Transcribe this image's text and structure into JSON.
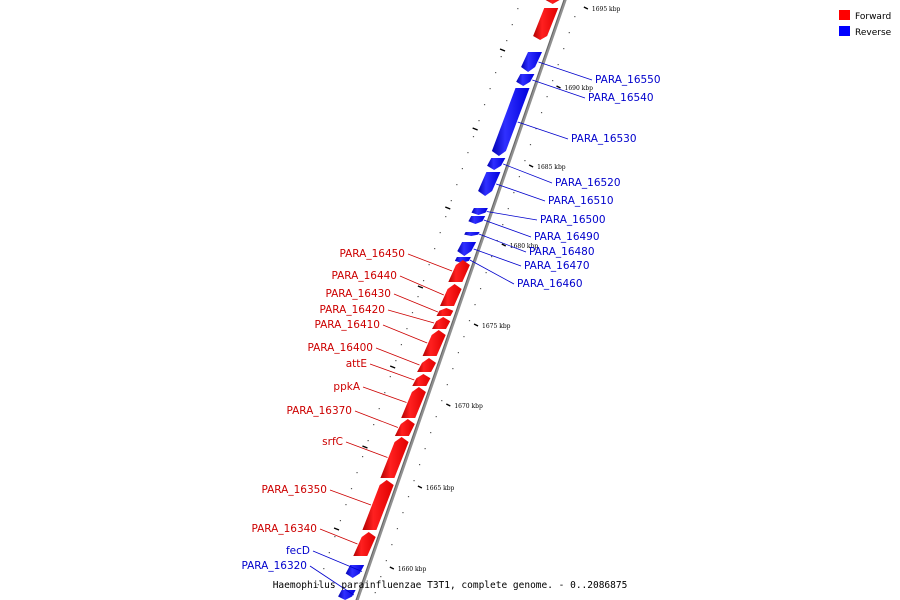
{
  "caption": "Haemophilus parainfluenzae T3T1, complete genome. - 0..2086875",
  "legend": [
    {
      "label": "Forward",
      "color": "#ff0000"
    },
    {
      "label": "Reverse",
      "color": "#0000ff"
    }
  ],
  "axis": {
    "unit": "kbp",
    "ticks": [
      "1695 kbp",
      "1690 kbp",
      "1685 kbp",
      "1680 kbp",
      "1675 kbp",
      "1670 kbp",
      "1665 kbp",
      "1660 kbp"
    ]
  },
  "genes": [
    {
      "label": "PARA_16550",
      "strand": "reverse"
    },
    {
      "label": "PARA_16540",
      "strand": "reverse"
    },
    {
      "label": "PARA_16530",
      "strand": "reverse"
    },
    {
      "label": "PARA_16520",
      "strand": "reverse"
    },
    {
      "label": "PARA_16510",
      "strand": "reverse"
    },
    {
      "label": "PARA_16500",
      "strand": "reverse"
    },
    {
      "label": "PARA_16490",
      "strand": "reverse"
    },
    {
      "label": "PARA_16480",
      "strand": "reverse"
    },
    {
      "label": "PARA_16470",
      "strand": "reverse"
    },
    {
      "label": "PARA_16460",
      "strand": "reverse"
    },
    {
      "label": "PARA_16450",
      "strand": "forward"
    },
    {
      "label": "PARA_16440",
      "strand": "forward"
    },
    {
      "label": "PARA_16430",
      "strand": "forward"
    },
    {
      "label": "PARA_16420",
      "strand": "forward"
    },
    {
      "label": "PARA_16410",
      "strand": "forward"
    },
    {
      "label": "PARA_16400",
      "strand": "forward"
    },
    {
      "label": "attE",
      "strand": "forward"
    },
    {
      "label": "ppkA",
      "strand": "forward"
    },
    {
      "label": "PARA_16370",
      "strand": "forward"
    },
    {
      "label": "srfC",
      "strand": "forward"
    },
    {
      "label": "PARA_16350",
      "strand": "forward"
    },
    {
      "label": "PARA_16340",
      "strand": "forward"
    },
    {
      "label": "fecD",
      "strand": "reverse"
    },
    {
      "label": "PARA_16320",
      "strand": "reverse"
    }
  ]
}
